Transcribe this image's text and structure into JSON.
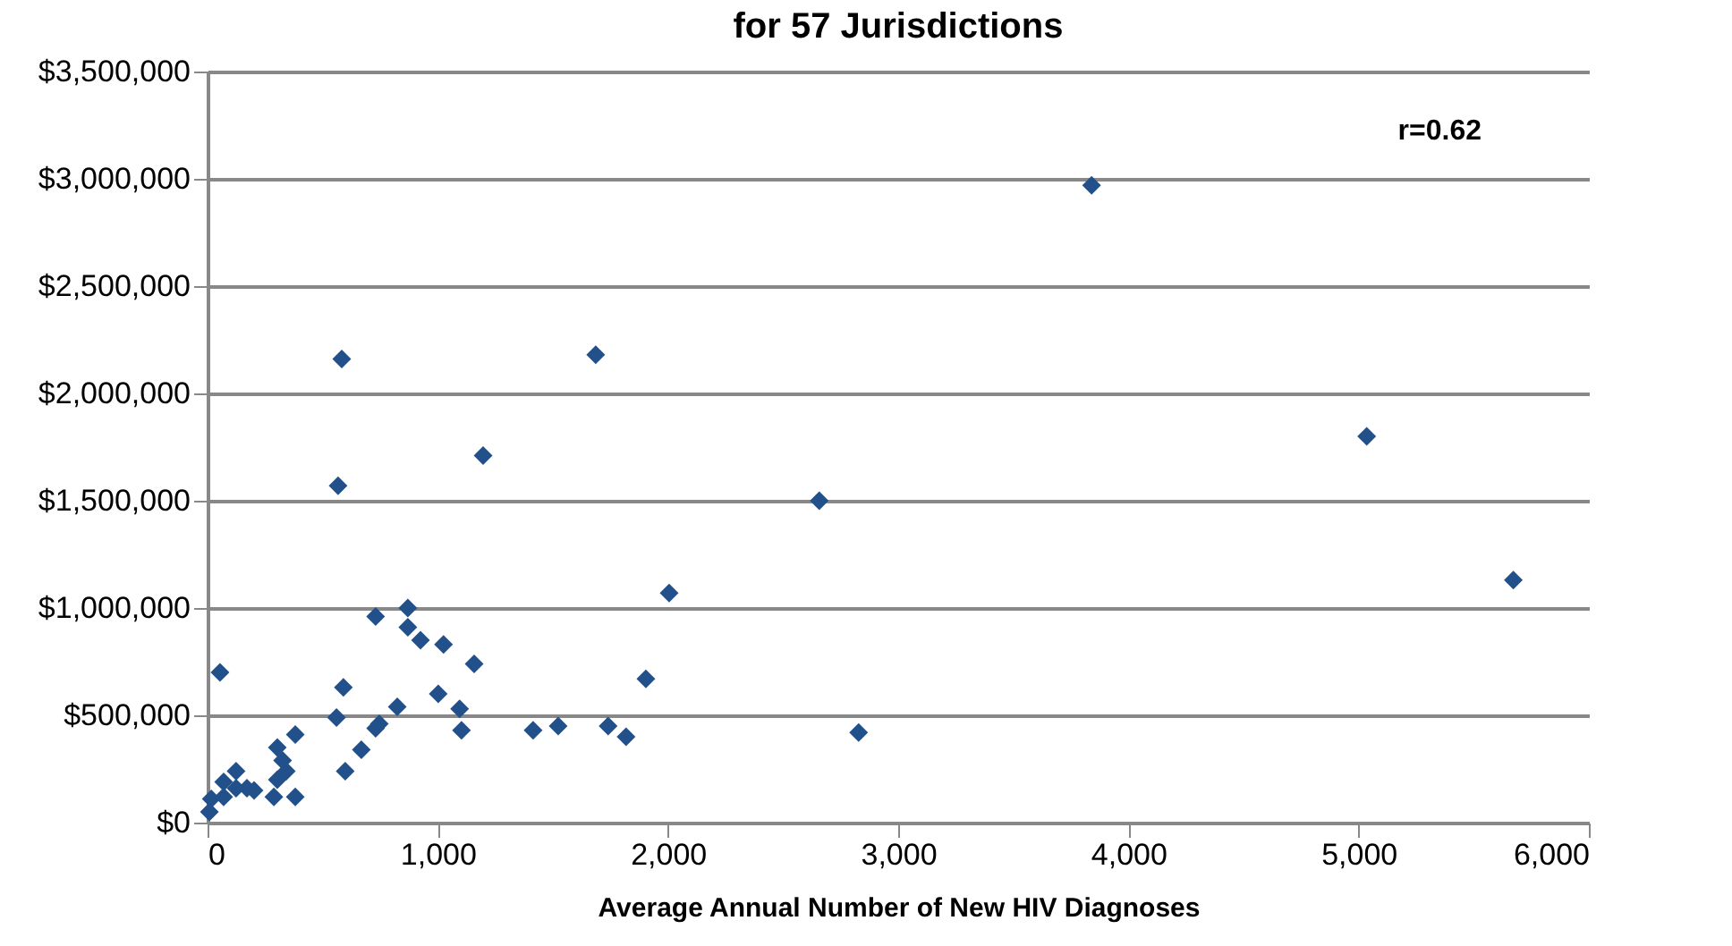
{
  "chart_data": {
    "type": "scatter",
    "title": "for 57 Jurisdictions",
    "xlabel": "Average Annual Number of New HIV Diagnoses",
    "annotations": [
      "r=0.62"
    ],
    "x": [
      3840,
      5035,
      5672,
      2657,
      2828,
      2005,
      1904,
      1818,
      1740,
      1523,
      1414,
      1686,
      1197,
      583,
      567,
      730,
      870,
      870,
      925,
      1025,
      1158,
      1002,
      1095,
      1103,
      824,
      746,
      730,
      590,
      560,
      668,
      598,
      54,
      381,
      303,
      326,
      303,
      381,
      288,
      124,
      171,
      70,
      16,
      8,
      70,
      124,
      202,
      342
    ],
    "values": [
      2970000,
      1800000,
      1130000,
      1500000,
      420000,
      1070000,
      670000,
      400000,
      450000,
      450000,
      430000,
      2180000,
      1710000,
      2160000,
      1570000,
      960000,
      1000000,
      910000,
      850000,
      830000,
      740000,
      600000,
      530000,
      430000,
      540000,
      460000,
      440000,
      630000,
      490000,
      340000,
      240000,
      700000,
      410000,
      350000,
      290000,
      200000,
      120000,
      120000,
      240000,
      160000,
      190000,
      110000,
      50000,
      120000,
      160000,
      150000,
      240000
    ],
    "color": "#22508a",
    "marker": "diamond",
    "grid": "y",
    "xlim": [
      0,
      6000
    ],
    "xticks": [
      {
        "value": 0,
        "label": "0"
      },
      {
        "value": 1000,
        "label": "1,000"
      },
      {
        "value": 2000,
        "label": "2,000"
      },
      {
        "value": 3000,
        "label": "3,000"
      },
      {
        "value": 4000,
        "label": "4,000"
      },
      {
        "value": 5000,
        "label": "5,000"
      },
      {
        "value": 6000,
        "label": "6,000"
      }
    ],
    "ylim": [
      0,
      3500000
    ],
    "yticks": [
      {
        "value": 0,
        "label": "$0"
      },
      {
        "value": 500000,
        "label": "$500,000"
      },
      {
        "value": 1000000,
        "label": "$1,000,000"
      },
      {
        "value": 1500000,
        "label": "$1,500,000"
      },
      {
        "value": 2000000,
        "label": "$2,000,000"
      },
      {
        "value": 2500000,
        "label": "$2,500,000"
      },
      {
        "value": 3000000,
        "label": "$3,000,000"
      },
      {
        "value": 3500000,
        "label": "$3,500,000"
      }
    ]
  }
}
